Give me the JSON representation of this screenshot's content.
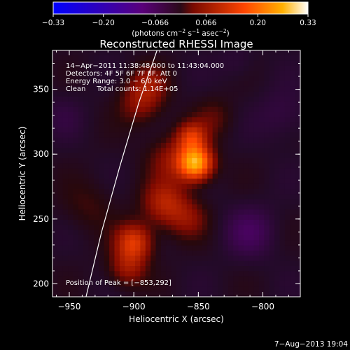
{
  "chart_data": {
    "type": "heatmap",
    "title": "Reconstructed RHESSI Image",
    "xlabel": "Heliocentric X (arcsec)",
    "ylabel": "Heliocentric Y (arcsec)",
    "xlim": [
      -963,
      -771
    ],
    "ylim": [
      190,
      380
    ],
    "x_ticks": [
      -950,
      -900,
      -850,
      -800
    ],
    "y_ticks": [
      200,
      250,
      300,
      350
    ],
    "x_tick_labels": [
      "−950",
      "−900",
      "−850",
      "−800"
    ],
    "y_tick_labels": [
      "200",
      "250",
      "300",
      "350"
    ],
    "colorbar": {
      "min": -0.33,
      "max": 0.33,
      "ticks": [
        -0.33,
        -0.2,
        -0.066,
        0.066,
        0.2,
        0.33
      ],
      "tick_labels": [
        "−0.33",
        "−0.20",
        "−0.066",
        "0.066",
        "0.20",
        "0.33"
      ],
      "unit_label_parts": [
        "(photons cm",
        "−2",
        " s",
        "−1",
        " asec",
        "−2",
        ")"
      ]
    },
    "annotations": [
      "14−Apr−2011 11:38:48.000 to 11:43:04.000",
      "Detectors: 4F 5F 6F 7F 8F, Att 0",
      "Energy Range: 3.0 − 6.0 keV",
      "Clean     Total counts: 1.14E+05"
    ],
    "peak_label": "Position of Peak = [−853,292]",
    "peak": [
      -853,
      292
    ],
    "sources": [
      {
        "x": -852,
        "y": 293,
        "sigma": 9,
        "amp": 0.26
      },
      {
        "x": -855,
        "y": 313,
        "sigma": 8,
        "amp": 0.12
      },
      {
        "x": -870,
        "y": 296,
        "sigma": 13,
        "amp": 0.07
      },
      {
        "x": -876,
        "y": 262,
        "sigma": 12,
        "amp": 0.1
      },
      {
        "x": -858,
        "y": 250,
        "sigma": 11,
        "amp": 0.06
      },
      {
        "x": -900,
        "y": 232,
        "sigma": 10,
        "amp": 0.14
      },
      {
        "x": -905,
        "y": 212,
        "sigma": 10,
        "amp": 0.08
      },
      {
        "x": -888,
        "y": 355,
        "sigma": 10,
        "amp": 0.06
      },
      {
        "x": -895,
        "y": 340,
        "sigma": 12,
        "amp": 0.07
      },
      {
        "x": -838,
        "y": 328,
        "sigma": 11,
        "amp": 0.04
      },
      {
        "x": -935,
        "y": 260,
        "sigma": 14,
        "amp": 0.03
      },
      {
        "x": -810,
        "y": 240,
        "sigma": 14,
        "amp": -0.05
      },
      {
        "x": -785,
        "y": 330,
        "sigma": 14,
        "amp": -0.03
      },
      {
        "x": -955,
        "y": 330,
        "sigma": 12,
        "amp": -0.02
      },
      {
        "x": -820,
        "y": 370,
        "sigma": 10,
        "amp": -0.02
      }
    ],
    "limb_curve": [
      [
        -937,
        190
      ],
      [
        -925,
        240
      ],
      [
        -911,
        290
      ],
      [
        -896,
        340
      ],
      [
        -882,
        380
      ]
    ]
  },
  "footer_date": "7−Aug−2013 19:04"
}
